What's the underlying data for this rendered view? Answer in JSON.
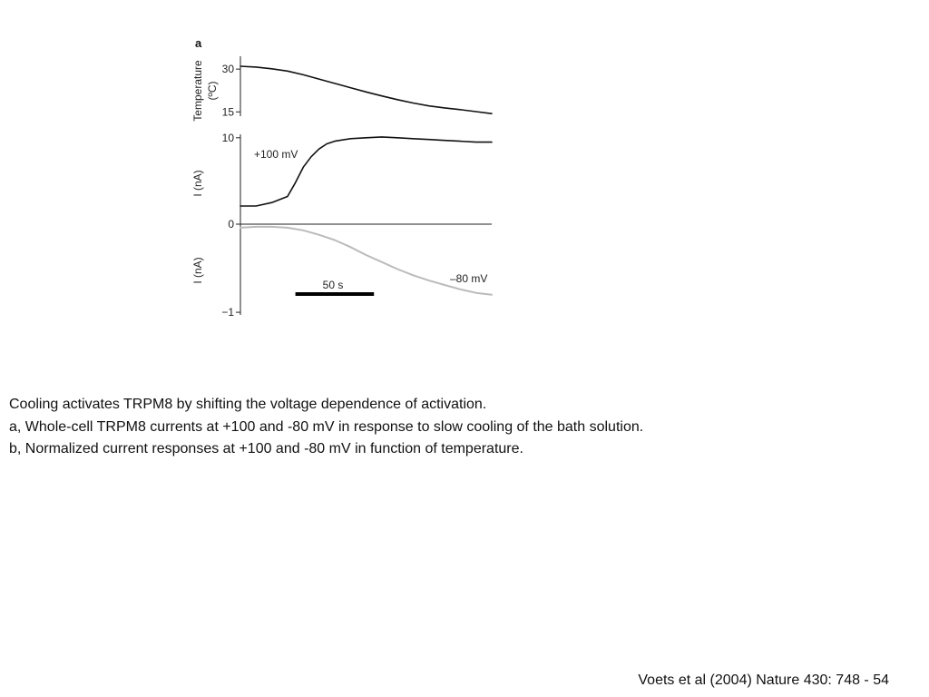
{
  "chart_data": {
    "type": "line",
    "panel_label": "a",
    "time_unit": "s",
    "scale_bar": {
      "label": "50 s",
      "duration": 50
    },
    "panels": [
      {
        "id": "temperature",
        "ylabel": [
          "Temperature",
          "(ºC)"
        ],
        "yticks": [
          30,
          15
        ],
        "ylim": [
          13.5,
          34.5
        ],
        "series": [
          {
            "name": "",
            "color": "#111111",
            "x": [
              0,
              10,
              20,
              30,
              40,
              50,
              60,
              70,
              80,
              90,
              100,
              110,
              120,
              130,
              140,
              150,
              160
            ],
            "y": [
              31,
              30.7,
              30.1,
              29.3,
              28,
              26.5,
              25,
              23.5,
              22,
              20.6,
              19.3,
              18.1,
              17.1,
              16.4,
              15.8,
              15.1,
              14.4
            ]
          }
        ]
      },
      {
        "id": "current-positive",
        "ylabel": [
          "I (nA)"
        ],
        "yticks": [
          10,
          0
        ],
        "ylim": [
          0,
          10.4
        ],
        "series": [
          {
            "name": "+100 mV",
            "color": "#111111",
            "x": [
              0,
              10,
              20,
              30,
              35,
              40,
              45,
              50,
              55,
              60,
              70,
              80,
              90,
              100,
              110,
              120,
              130,
              140,
              150,
              160
            ],
            "y": [
              2.1,
              2.1,
              2.5,
              3.2,
              4.8,
              6.6,
              7.8,
              8.7,
              9.3,
              9.6,
              9.9,
              10,
              10.1,
              10,
              9.9,
              9.8,
              9.7,
              9.6,
              9.5,
              9.5
            ]
          }
        ]
      },
      {
        "id": "current-negative",
        "ylabel": [
          "I (nA)"
        ],
        "yticks": [
          -1
        ],
        "ylim": [
          -1.03,
          0
        ],
        "series": [
          {
            "name": "–80 mV",
            "color": "#bbbbbb",
            "x": [
              0,
              10,
              20,
              30,
              40,
              50,
              60,
              70,
              80,
              90,
              100,
              110,
              120,
              130,
              140,
              150,
              160
            ],
            "y": [
              -0.04,
              -0.03,
              -0.03,
              -0.04,
              -0.07,
              -0.12,
              -0.18,
              -0.26,
              -0.35,
              -0.43,
              -0.51,
              -0.58,
              -0.64,
              -0.69,
              -0.74,
              -0.78,
              -0.8
            ]
          }
        ]
      }
    ]
  },
  "caption": {
    "title": "Cooling activates TRPM8 by shifting the voltage dependence of activation.",
    "line_a": "a, Whole-cell TRPM8 currents at +100 and -80 mV in response to slow cooling of the bath solution.",
    "line_b": "b, Normalized current responses at +100 and -80 mV in function of temperature."
  },
  "citation": "Voets et al (2004) Nature 430: 748 - 54"
}
